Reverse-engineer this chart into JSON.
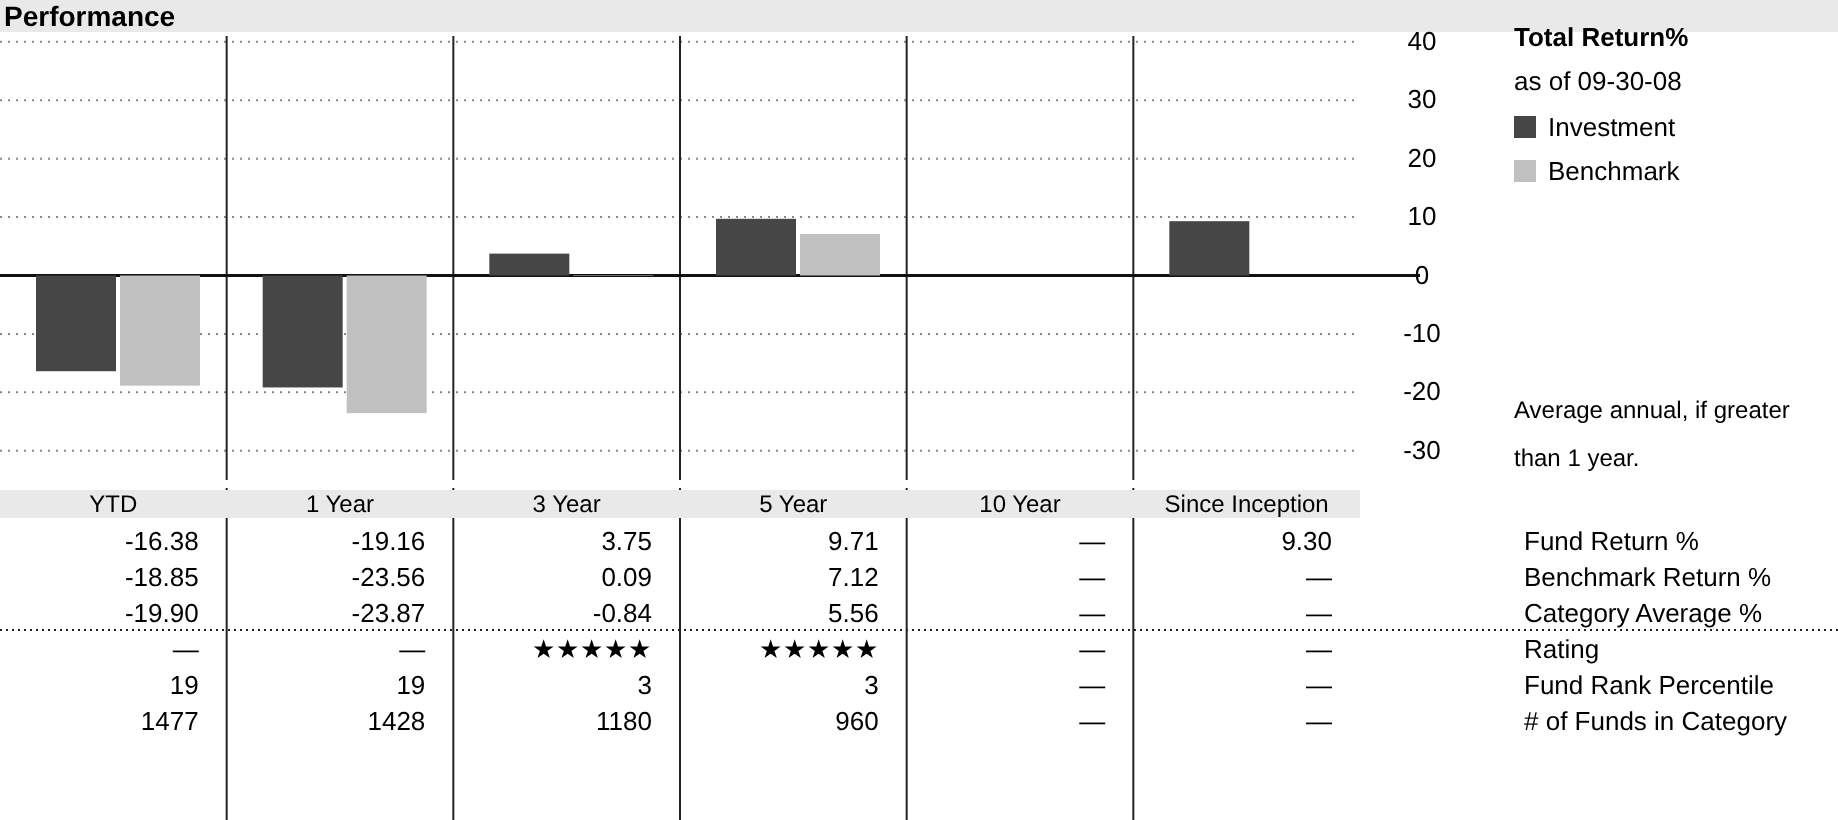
{
  "chart_data": {
    "type": "bar",
    "title": "Performance",
    "legend_title": "Total Return%",
    "subtitle": "as of 09-30-08",
    "categories": [
      "YTD",
      "1 Year",
      "3 Year",
      "5 Year",
      "10 Year",
      "Since Inception"
    ],
    "series": [
      {
        "name": "Investment",
        "color": "#464646",
        "values": [
          -16.38,
          -19.16,
          3.75,
          9.71,
          null,
          9.3
        ],
        "value_labels": [
          "-16.38",
          "-19.16",
          "3.75",
          "9.71",
          "—",
          "9.30"
        ]
      },
      {
        "name": "Benchmark",
        "color": "#c0c0c0",
        "values": [
          -18.85,
          -23.56,
          0.09,
          7.12,
          null,
          null
        ],
        "value_labels": [
          "-18.85",
          "-23.56",
          "0.09",
          "7.12",
          "—",
          "—"
        ]
      }
    ],
    "ylim": [
      -35,
      41
    ],
    "yticks": [
      -30,
      -20,
      -10,
      0,
      10,
      20,
      30,
      40
    ],
    "grid": "y",
    "legend": "right",
    "annotations": [
      "Average annual, if greater than 1 year.",
      "Fund Return %",
      "Benchmark Return %",
      "-19.90",
      "-23.87",
      "-0.84",
      "5.56",
      "—",
      "—",
      "Category Average %",
      "—",
      "—",
      "★★★★★",
      "★★★★★",
      "—",
      "—",
      "Rating",
      "19",
      "19",
      "3",
      "3",
      "—",
      "—",
      "Fund Rank Percentile",
      "1477",
      "1428",
      "1180",
      "960",
      "—",
      "—",
      "# of Funds in Category"
    ]
  }
}
